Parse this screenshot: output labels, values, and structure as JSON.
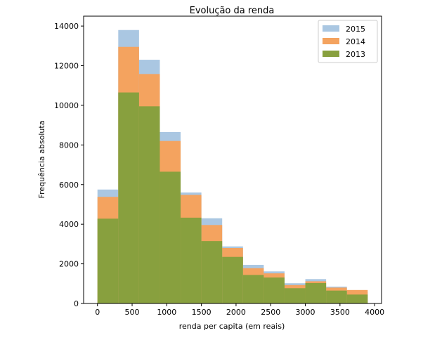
{
  "chart_data": {
    "type": "bar",
    "subtype": "overlapping-histogram",
    "title": "Evolução da renda",
    "xlabel": "renda per capita (em reais)",
    "ylabel": "Frequência absoluta",
    "xlim": [
      -200,
      4100
    ],
    "ylim": [
      0,
      14500
    ],
    "xticks": [
      0,
      500,
      1000,
      1500,
      2000,
      2500,
      3000,
      3500,
      4000
    ],
    "yticks": [
      0,
      2000,
      4000,
      6000,
      8000,
      10000,
      12000,
      14000
    ],
    "bin_edges": [
      0,
      300,
      600,
      900,
      1200,
      1500,
      1800,
      2100,
      2400,
      2700,
      3000,
      3300,
      3600,
      3900
    ],
    "grid": false,
    "legend_position": "top-right",
    "series": [
      {
        "name": "2015",
        "color": "#aac7e2",
        "values": [
          5750,
          13800,
          12300,
          8650,
          5600,
          4300,
          2880,
          1950,
          1620,
          1020,
          1230,
          850,
          580
        ]
      },
      {
        "name": "2014",
        "color": "#f4a35f",
        "values": [
          5380,
          12950,
          11580,
          8200,
          5480,
          3960,
          2800,
          1780,
          1520,
          930,
          1120,
          800,
          680
        ]
      },
      {
        "name": "2013",
        "color": "#88a03e",
        "values": [
          4280,
          10650,
          9950,
          6650,
          4330,
          3150,
          2350,
          1440,
          1310,
          770,
          1030,
          650,
          450
        ]
      }
    ]
  }
}
